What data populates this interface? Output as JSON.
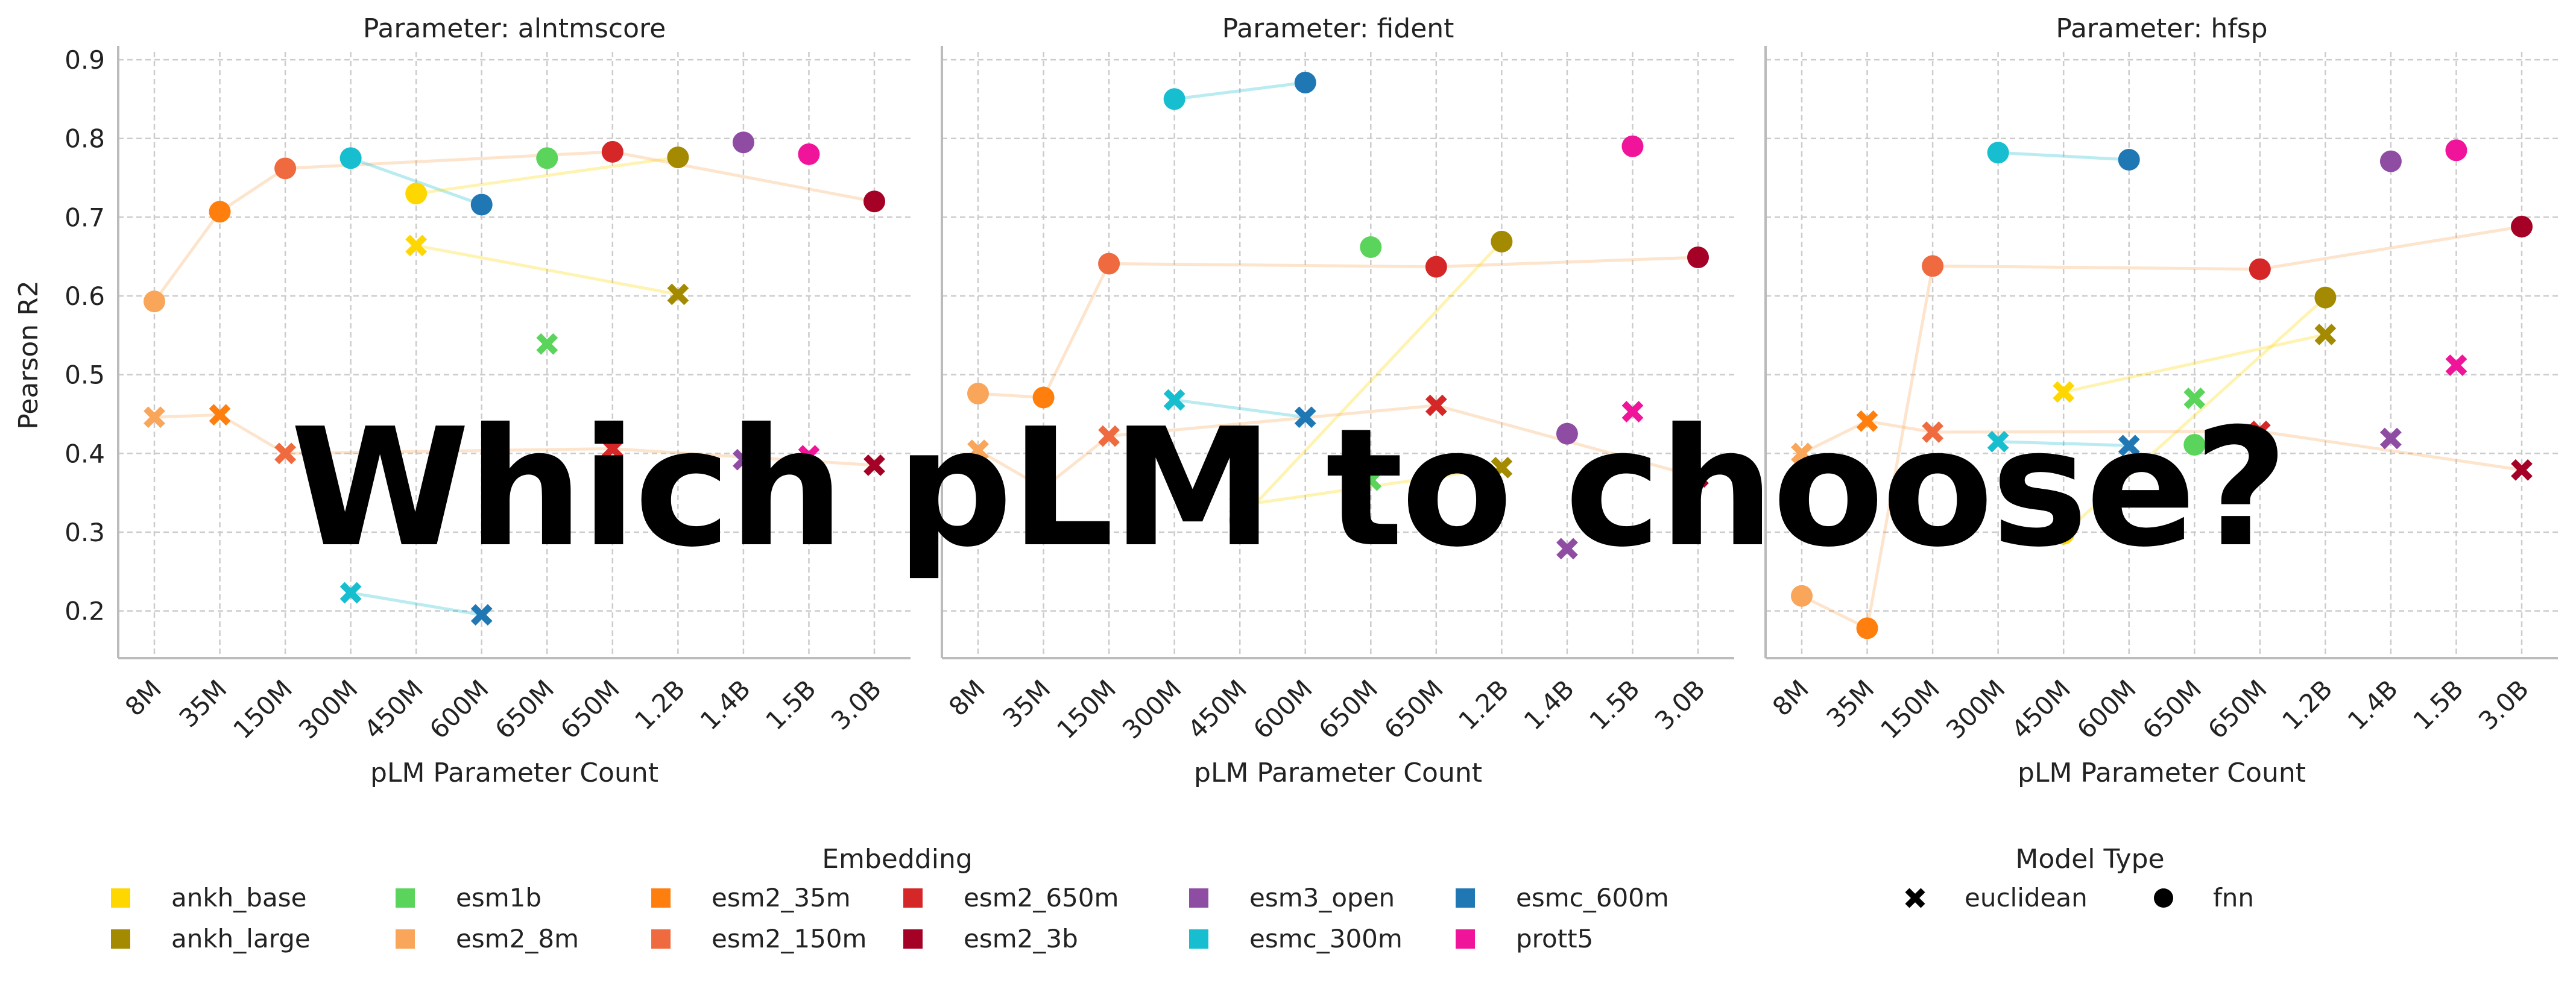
{
  "overlay_text": "Which pLM to choose?",
  "chart_data": {
    "type": "scatter",
    "ylabel": "Pearson R2",
    "xlabel": "pLM Parameter Count",
    "ylim": [
      0.14,
      0.91
    ],
    "y_ticks": [
      0.2,
      0.3,
      0.4,
      0.5,
      0.6,
      0.7,
      0.8,
      0.9
    ],
    "x_categories": [
      "8M",
      "35M",
      "150M",
      "300M",
      "450M",
      "600M",
      "650M",
      "650M",
      "1.2B",
      "1.4B",
      "1.5B",
      "3.0B"
    ],
    "grid": true,
    "embedding_order": [
      "ankh_base",
      "ankh_large",
      "esm1b",
      "esm2_8m",
      "esm2_35m",
      "esm2_150m",
      "esm2_650m",
      "esm2_3b",
      "esm3_open",
      "esmc_300m",
      "esmc_600m",
      "prott5"
    ],
    "embedding_x_index": {
      "esm2_8m": 0,
      "esm2_35m": 1,
      "esm2_150m": 2,
      "esmc_300m": 3,
      "ankh_base": 4,
      "esmc_600m": 5,
      "esm1b": 6,
      "esm2_650m": 7,
      "ankh_large": 8,
      "esm3_open": 9,
      "prott5": 10,
      "esm2_3b": 11
    },
    "colors": {
      "ankh_base": "#ffd700",
      "ankh_large": "#a38a00",
      "esm1b": "#5ad45a",
      "esm2_8m": "#f9a65a",
      "esm2_35m": "#ff7f0e",
      "esm2_150m": "#f06a3f",
      "esm2_650m": "#d62728",
      "esm2_3b": "#a50026",
      "esm3_open": "#8e4ca3",
      "esmc_300m": "#17becf",
      "esmc_600m": "#1f77b4",
      "prott5": "#f0149a"
    },
    "family_lines": [
      {
        "members": [
          "esm2_8m",
          "esm2_35m",
          "esm2_150m",
          "esm2_650m",
          "esm2_3b"
        ],
        "color": "#f9a65a"
      },
      {
        "members": [
          "esmc_300m",
          "esmc_600m"
        ],
        "color": "#17becf"
      },
      {
        "members": [
          "ankh_base",
          "ankh_large"
        ],
        "color": "#ffd700"
      }
    ],
    "panels": [
      {
        "title": "Parameter: alntmscore",
        "fnn": {
          "esm2_8m": 0.593,
          "esm2_35m": 0.707,
          "esm2_150m": 0.762,
          "esmc_300m": 0.775,
          "ankh_base": 0.73,
          "esmc_600m": 0.716,
          "esm1b": 0.775,
          "esm2_650m": 0.783,
          "ankh_large": 0.776,
          "esm3_open": 0.795,
          "prott5": 0.78,
          "esm2_3b": 0.72
        },
        "euclidean": {
          "esm2_8m": 0.446,
          "esm2_35m": 0.449,
          "esm2_150m": 0.4,
          "esmc_300m": 0.223,
          "ankh_base": 0.664,
          "esmc_600m": 0.195,
          "esm1b": 0.539,
          "esm2_650m": 0.406,
          "ankh_large": 0.602,
          "esm3_open": 0.392,
          "prott5": 0.397,
          "esm2_3b": 0.385
        }
      },
      {
        "title": "Parameter: fident",
        "fnn": {
          "esm2_8m": 0.476,
          "esm2_35m": 0.471,
          "esm2_150m": 0.641,
          "esmc_300m": 0.85,
          "ankh_base": 0.315,
          "esmc_600m": 0.871,
          "esm1b": 0.662,
          "esm2_650m": 0.637,
          "ankh_large": 0.669,
          "esm3_open": 0.425,
          "prott5": 0.79,
          "esm2_3b": 0.649
        },
        "euclidean": {
          "esm2_8m": 0.404,
          "esm2_35m": 0.356,
          "esm2_150m": 0.422,
          "esmc_300m": 0.468,
          "ankh_base": 0.334,
          "esmc_600m": 0.446,
          "esm1b": 0.366,
          "esm2_650m": 0.461,
          "ankh_large": 0.382,
          "esm3_open": 0.279,
          "prott5": 0.453,
          "esm2_3b": 0.37
        }
      },
      {
        "title": "Parameter: hfsp",
        "fnn": {
          "esm2_8m": 0.219,
          "esm2_35m": 0.178,
          "esm2_150m": 0.638,
          "esmc_300m": 0.782,
          "ankh_base": 0.298,
          "esmc_600m": 0.773,
          "esm1b": 0.411,
          "esm2_650m": 0.634,
          "ankh_large": 0.598,
          "esm3_open": 0.771,
          "prott5": 0.785,
          "esm2_3b": 0.688
        },
        "euclidean": {
          "esm2_8m": 0.4,
          "esm2_35m": 0.441,
          "esm2_150m": 0.427,
          "esmc_300m": 0.415,
          "ankh_base": 0.478,
          "esmc_600m": 0.41,
          "esm1b": 0.47,
          "esm2_650m": 0.428,
          "ankh_large": 0.551,
          "esm3_open": 0.419,
          "prott5": 0.512,
          "esm2_3b": 0.379
        }
      }
    ],
    "legend_embedding": {
      "title": "Embedding",
      "placement": "bottom-left",
      "entries": [
        "ankh_base",
        "ankh_large",
        "esm1b",
        "esm2_8m",
        "esm2_35m",
        "esm2_150m",
        "esm2_650m",
        "esm2_3b",
        "esm3_open",
        "esmc_300m",
        "esmc_600m",
        "prott5"
      ]
    },
    "legend_model": {
      "title": "Model Type",
      "placement": "bottom-right",
      "entries": [
        {
          "label": "euclidean",
          "marker": "x"
        },
        {
          "label": "fnn",
          "marker": "circle"
        }
      ]
    }
  }
}
